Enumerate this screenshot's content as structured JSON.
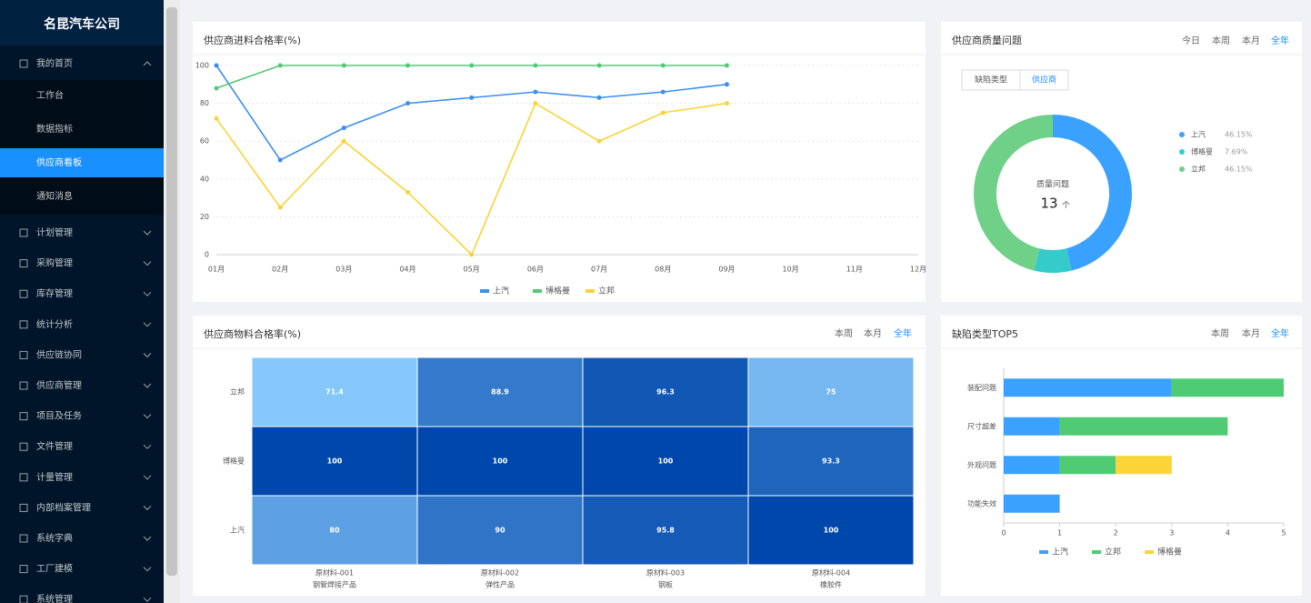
{
  "sidebar": {
    "title": "名昆汽车公司",
    "active_child": 2,
    "menu": [
      {
        "label": "我的首页",
        "children": [
          "工作台",
          "数据指标",
          "供应商看板",
          "通知消息"
        ]
      },
      {
        "label": "计划管理"
      },
      {
        "label": "采购管理"
      },
      {
        "label": "库存管理"
      },
      {
        "label": "统计分析"
      },
      {
        "label": "供应链协同"
      },
      {
        "label": "供应商管理"
      },
      {
        "label": "项目及任务"
      },
      {
        "label": "文件管理"
      },
      {
        "label": "计量管理"
      },
      {
        "label": "内部档案管理"
      },
      {
        "label": "系统字典"
      },
      {
        "label": "工厂建模"
      },
      {
        "label": "系统管理"
      }
    ]
  },
  "chart_data": [
    {
      "type": "line",
      "title": "供应商进料合格率(%)",
      "categories": [
        "01月",
        "02月",
        "03月",
        "04月",
        "05月",
        "06月",
        "07月",
        "08月",
        "09月",
        "10月",
        "11月",
        "12月"
      ],
      "series": [
        {
          "name": "上汽",
          "color": "#3b8ff0",
          "values": [
            100,
            50,
            67,
            80,
            83,
            86,
            83,
            86,
            90,
            null,
            null,
            null
          ]
        },
        {
          "name": "博格曼",
          "color": "#52c878",
          "values": [
            88,
            100,
            100,
            100,
            100,
            100,
            100,
            100,
            100,
            null,
            null,
            null
          ]
        },
        {
          "name": "立邦",
          "color": "#fad337",
          "values": [
            72,
            25,
            60,
            33,
            0,
            80,
            60,
            75,
            80,
            null,
            null,
            null
          ]
        }
      ],
      "ylim": [
        0,
        100
      ],
      "yticks": [
        0,
        20,
        40,
        60,
        80,
        100
      ],
      "grid": true,
      "legend": "bottom"
    },
    {
      "type": "pie",
      "title": "供应商质量问题",
      "tabs": [
        "今日",
        "本周",
        "本月",
        "全年"
      ],
      "active_tab": 3,
      "buttons": [
        "缺陷类型",
        "供应商"
      ],
      "active_button": 1,
      "center_label": "质量问题",
      "total": 13,
      "total_unit": "个",
      "categories": [
        "上汽",
        "博格曼",
        "立邦"
      ],
      "values": [
        46.15,
        7.69,
        46.15
      ],
      "value_labels": [
        "46.15%",
        "7.69%",
        "46.15%"
      ],
      "colors": [
        "#3ba1ff",
        "#36cbcb",
        "#6fd088"
      ],
      "legend": "right"
    },
    {
      "type": "heatmap",
      "title": "供应商物料合格率(%)",
      "tabs": [
        "本周",
        "本月",
        "全年"
      ],
      "active_tab": 2,
      "rows": [
        "立邦",
        "博格曼",
        "上汽"
      ],
      "columns": [
        {
          "code": "原材料-001",
          "name": "钢管焊接产品"
        },
        {
          "code": "原材料-002",
          "name": "弹性产品"
        },
        {
          "code": "原材料-003",
          "name": "钢板"
        },
        {
          "code": "原材料-004",
          "name": "橡胶件"
        }
      ],
      "values": [
        [
          71.4,
          88.9,
          96.3,
          75
        ],
        [
          100,
          100,
          100,
          93.3
        ],
        [
          80,
          90,
          95.8,
          100
        ]
      ],
      "color_scale": [
        "#8ccdff",
        "#0047ab"
      ],
      "scale_range": [
        70,
        100
      ]
    },
    {
      "type": "bar",
      "orientation": "horizontal",
      "stacked": true,
      "title": "缺陷类型TOP5",
      "tabs": [
        "本周",
        "本月",
        "全年"
      ],
      "active_tab": 2,
      "categories": [
        "装配问题",
        "尺寸超差",
        "外观问题",
        "功能失效"
      ],
      "series": [
        {
          "name": "上汽",
          "color": "#3ba1ff",
          "values": [
            3,
            1,
            1,
            1
          ]
        },
        {
          "name": "立邦",
          "color": "#4ecb73",
          "values": [
            2,
            3,
            1,
            0
          ]
        },
        {
          "name": "博格曼",
          "color": "#fbd437",
          "values": [
            0,
            0,
            1,
            0
          ]
        }
      ],
      "xlim": [
        0,
        5
      ],
      "xticks": [
        0,
        1,
        2,
        3,
        4,
        5
      ],
      "legend": "bottom"
    }
  ]
}
